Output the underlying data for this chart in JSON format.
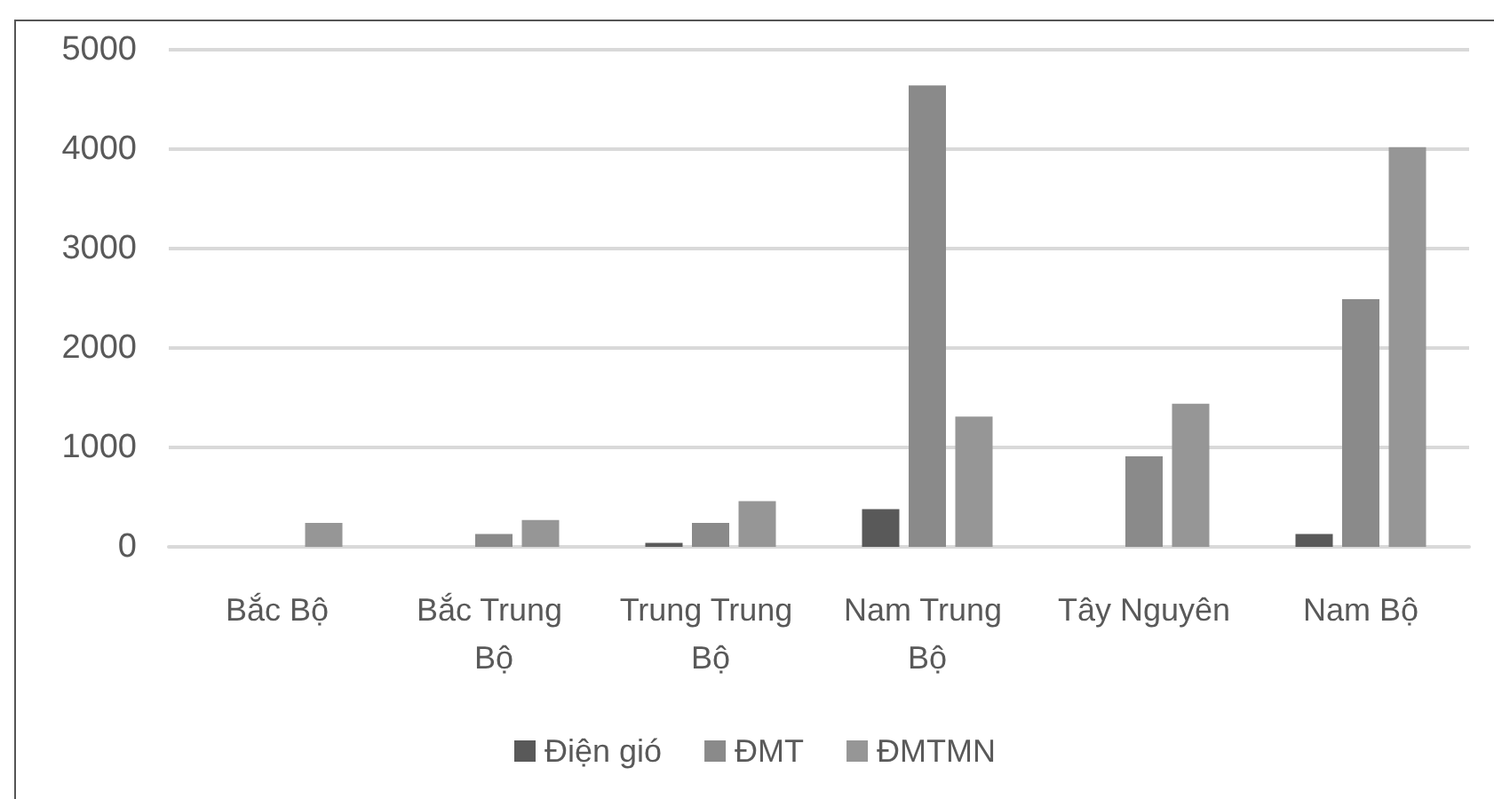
{
  "chart_data": {
    "type": "bar",
    "categories": [
      "Bắc Bộ",
      "Bắc Trung Bộ",
      "Trung Trung Bộ",
      "Nam Trung Bộ",
      "Tây Nguyên",
      "Nam Bộ"
    ],
    "series": [
      {
        "name": "Điện gió",
        "color": "#595959",
        "values": [
          0,
          0,
          40,
          380,
          0,
          130
        ]
      },
      {
        "name": "ĐMT",
        "color": "#8a8a8a",
        "values": [
          0,
          130,
          240,
          4640,
          910,
          2490
        ]
      },
      {
        "name": "ĐMTMN",
        "color": "#969696",
        "values": [
          240,
          270,
          460,
          1310,
          1440,
          4020
        ]
      }
    ],
    "ylim": [
      0,
      5000
    ],
    "yticks": [
      0,
      1000,
      2000,
      3000,
      4000,
      5000
    ],
    "grid": "y",
    "legend": "bottom"
  }
}
